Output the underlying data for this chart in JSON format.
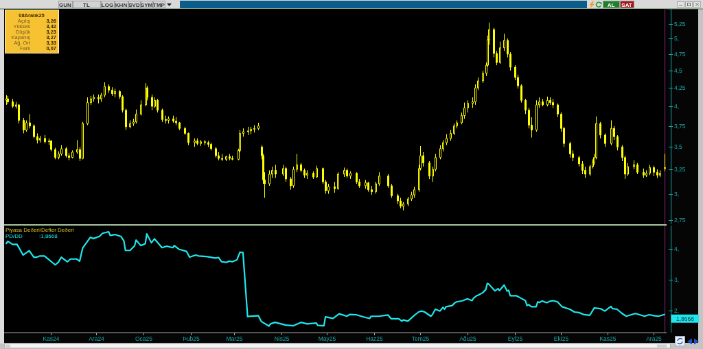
{
  "chart_data": [
    {
      "type": "other",
      "annotations": [
        "GUN",
        "TL",
        "LOG",
        "KHN",
        "SVD",
        "SYM",
        "TMP",
        "AL",
        "SAT"
      ]
    },
    {
      "type": "candlestick",
      "log": "y",
      "tick_labels": "y",
      "color": "#ffff00",
      "xlim": [
        "2024-10-02",
        "2025-12-09"
      ],
      "ylim": [
        2.72,
        5.5
      ],
      "yticks": [
        {
          "value": 2.75,
          "label": "2,75"
        },
        {
          "value": 3,
          "label": "3,"
        },
        {
          "value": 3.25,
          "label": "3,25"
        },
        {
          "value": 3.5,
          "label": "3,5"
        },
        {
          "value": 3.75,
          "label": "3,75"
        },
        {
          "value": 4,
          "label": "4,"
        },
        {
          "value": 4.25,
          "label": "4,25"
        },
        {
          "value": 4.5,
          "label": "4,5"
        },
        {
          "value": 4.75,
          "label": "4,75"
        },
        {
          "value": 5,
          "label": "5,"
        },
        {
          "value": 5.25,
          "label": "5,25"
        }
      ],
      "x": [
        "2024-10-03",
        "2024-10-04",
        "2024-10-07",
        "2024-10-09",
        "2024-10-11",
        "2024-10-14",
        "2024-10-16",
        "2024-10-18",
        "2024-10-21",
        "2024-10-23",
        "2024-10-25",
        "2024-10-28",
        "2024-10-31",
        "2024-11-01",
        "2024-11-04",
        "2024-11-06",
        "2024-11-08",
        "2024-11-11",
        "2024-11-13",
        "2024-11-15",
        "2024-11-18",
        "2024-11-20",
        "2024-11-22",
        "2024-11-25",
        "2024-11-27",
        "2024-11-29",
        "2024-12-02",
        "2024-12-04",
        "2024-12-06",
        "2024-12-09",
        "2024-12-11",
        "2024-12-13",
        "2024-12-16",
        "2024-12-18",
        "2024-12-20",
        "2024-12-23",
        "2024-12-25",
        "2024-12-27",
        "2024-12-30",
        "2025-01-02",
        "2025-01-03",
        "2025-01-06",
        "2025-01-08",
        "2025-01-10",
        "2025-01-13",
        "2025-01-15",
        "2025-01-17",
        "2025-01-20",
        "2025-01-22",
        "2025-01-24",
        "2025-01-28",
        "2025-01-30",
        "2025-02-03",
        "2025-02-05",
        "2025-02-07",
        "2025-02-10",
        "2025-02-12",
        "2025-02-14",
        "2025-02-17",
        "2025-02-19",
        "2025-02-21",
        "2025-02-24",
        "2025-02-26",
        "2025-02-28",
        "2025-03-04",
        "2025-03-05",
        "2025-03-07",
        "2025-03-10",
        "2025-03-12",
        "2025-03-14",
        "2025-03-17",
        "2025-03-19",
        "2025-03-20",
        "2025-03-21",
        "2025-03-24",
        "2025-03-26",
        "2025-03-28",
        "2025-04-02",
        "2025-04-04",
        "2025-04-07",
        "2025-04-09",
        "2025-04-11",
        "2025-04-14",
        "2025-04-16",
        "2025-04-18",
        "2025-04-22",
        "2025-04-24",
        "2025-04-28",
        "2025-04-30",
        "2025-05-02",
        "2025-05-06",
        "2025-05-08",
        "2025-05-12",
        "2025-05-14",
        "2025-05-16",
        "2025-05-20",
        "2025-05-22",
        "2025-05-26",
        "2025-05-28",
        "2025-05-30",
        "2025-06-02",
        "2025-06-04",
        "2025-06-10",
        "2025-06-12",
        "2025-06-16",
        "2025-06-18",
        "2025-06-20",
        "2025-06-23",
        "2025-06-25",
        "2025-06-27",
        "2025-06-30",
        "2025-07-01",
        "2025-07-03",
        "2025-07-07",
        "2025-07-09",
        "2025-07-11",
        "2025-07-14",
        "2025-07-16",
        "2025-07-18",
        "2025-07-21",
        "2025-07-23",
        "2025-07-25",
        "2025-07-28",
        "2025-07-30",
        "2025-08-01",
        "2025-08-04",
        "2025-08-06",
        "2025-08-08",
        "2025-08-11",
        "2025-08-13",
        "2025-08-14",
        "2025-08-15",
        "2025-08-18",
        "2025-08-20",
        "2025-08-22",
        "2025-08-25",
        "2025-08-27",
        "2025-08-29",
        "2025-09-01",
        "2025-09-03",
        "2025-09-05",
        "2025-09-08",
        "2025-09-10",
        "2025-09-12",
        "2025-09-15",
        "2025-09-17",
        "2025-09-19",
        "2025-09-22",
        "2025-09-24",
        "2025-09-26",
        "2025-09-29",
        "2025-10-01",
        "2025-10-03",
        "2025-10-07",
        "2025-10-09",
        "2025-10-13",
        "2025-10-15",
        "2025-10-17",
        "2025-10-20",
        "2025-10-22",
        "2025-10-23",
        "2025-10-24",
        "2025-10-27",
        "2025-10-30",
        "2025-11-03",
        "2025-11-05",
        "2025-11-07",
        "2025-11-10",
        "2025-11-12",
        "2025-11-14",
        "2025-11-18",
        "2025-11-20",
        "2025-11-24",
        "2025-11-26",
        "2025-11-28",
        "2025-12-01",
        "2025-12-03",
        "2025-12-05",
        "2025-12-08"
      ],
      "ohlc": [
        [
          4.08,
          4.15,
          4.02,
          4.1
        ],
        [
          4.1,
          4.14,
          4.03,
          4.06
        ],
        [
          4.06,
          4.1,
          3.98,
          4.0
        ],
        [
          4.0,
          4.06,
          3.97,
          4.02
        ],
        [
          4.02,
          4.03,
          3.78,
          3.82
        ],
        [
          3.82,
          3.85,
          3.66,
          3.7
        ],
        [
          3.7,
          3.82,
          3.68,
          3.79
        ],
        [
          3.79,
          3.9,
          3.72,
          3.75
        ],
        [
          3.75,
          3.77,
          3.6,
          3.62
        ],
        [
          3.62,
          3.66,
          3.54,
          3.58
        ],
        [
          3.58,
          3.63,
          3.55,
          3.6
        ],
        [
          3.6,
          3.64,
          3.54,
          3.56
        ],
        [
          3.56,
          3.6,
          3.52,
          3.57
        ],
        [
          3.57,
          3.58,
          3.45,
          3.47
        ],
        [
          3.47,
          3.49,
          3.36,
          3.38
        ],
        [
          3.38,
          3.45,
          3.36,
          3.42
        ],
        [
          3.42,
          3.52,
          3.4,
          3.48
        ],
        [
          3.48,
          3.5,
          3.38,
          3.4
        ],
        [
          3.4,
          3.43,
          3.35,
          3.38
        ],
        [
          3.38,
          3.46,
          3.37,
          3.44
        ],
        [
          3.44,
          3.58,
          3.42,
          3.47
        ],
        [
          3.47,
          3.5,
          3.34,
          3.37
        ],
        [
          3.37,
          3.8,
          3.36,
          3.78
        ],
        [
          3.78,
          4.12,
          3.76,
          4.05
        ],
        [
          4.05,
          4.14,
          4.02,
          4.1
        ],
        [
          4.1,
          4.16,
          4.06,
          4.12
        ],
        [
          4.12,
          4.16,
          4.04,
          4.1
        ],
        [
          4.1,
          4.18,
          4.06,
          4.15
        ],
        [
          4.15,
          4.33,
          4.12,
          4.27
        ],
        [
          4.27,
          4.3,
          4.18,
          4.22
        ],
        [
          4.22,
          4.26,
          4.14,
          4.17
        ],
        [
          4.17,
          4.24,
          4.12,
          4.2
        ],
        [
          4.2,
          4.22,
          4.1,
          4.13
        ],
        [
          4.13,
          4.15,
          3.92,
          3.95
        ],
        [
          3.95,
          3.97,
          3.7,
          3.74
        ],
        [
          3.74,
          3.82,
          3.72,
          3.78
        ],
        [
          3.78,
          3.84,
          3.75,
          3.8
        ],
        [
          3.8,
          3.96,
          3.78,
          3.9
        ],
        [
          3.9,
          4.08,
          3.88,
          4.02
        ],
        [
          4.02,
          4.32,
          4.0,
          4.25
        ],
        [
          4.25,
          4.28,
          4.08,
          4.12
        ],
        [
          4.12,
          4.16,
          3.95,
          4.0
        ],
        [
          4.0,
          4.12,
          3.98,
          4.08
        ],
        [
          4.08,
          4.1,
          3.92,
          3.95
        ],
        [
          3.95,
          3.97,
          3.8,
          3.83
        ],
        [
          3.83,
          3.88,
          3.78,
          3.82
        ],
        [
          3.82,
          3.87,
          3.78,
          3.84
        ],
        [
          3.84,
          3.88,
          3.79,
          3.81
        ],
        [
          3.81,
          3.86,
          3.76,
          3.79
        ],
        [
          3.79,
          3.8,
          3.7,
          3.72
        ],
        [
          3.72,
          3.74,
          3.64,
          3.66
        ],
        [
          3.66,
          3.67,
          3.52,
          3.55
        ],
        [
          3.55,
          3.6,
          3.5,
          3.57
        ],
        [
          3.57,
          3.6,
          3.52,
          3.54
        ],
        [
          3.54,
          3.58,
          3.51,
          3.56
        ],
        [
          3.56,
          3.58,
          3.52,
          3.55
        ],
        [
          3.55,
          3.57,
          3.5,
          3.53
        ],
        [
          3.53,
          3.55,
          3.46,
          3.48
        ],
        [
          3.48,
          3.5,
          3.38,
          3.4
        ],
        [
          3.4,
          3.44,
          3.35,
          3.37
        ],
        [
          3.37,
          3.42,
          3.34,
          3.36
        ],
        [
          3.36,
          3.4,
          3.34,
          3.39
        ],
        [
          3.39,
          3.42,
          3.35,
          3.37
        ],
        [
          3.37,
          3.4,
          3.35,
          3.36
        ],
        [
          3.36,
          3.48,
          3.35,
          3.46
        ],
        [
          3.46,
          3.7,
          3.44,
          3.66
        ],
        [
          3.66,
          3.72,
          3.62,
          3.68
        ],
        [
          3.68,
          3.74,
          3.64,
          3.69
        ],
        [
          3.69,
          3.74,
          3.65,
          3.71
        ],
        [
          3.71,
          3.76,
          3.67,
          3.72
        ],
        [
          3.72,
          3.79,
          3.7,
          3.75
        ],
        [
          3.5,
          3.52,
          3.36,
          3.4
        ],
        [
          3.4,
          3.42,
          3.1,
          3.14
        ],
        [
          3.14,
          3.22,
          2.96,
          3.1
        ],
        [
          3.1,
          3.24,
          3.08,
          3.2
        ],
        [
          3.2,
          3.28,
          3.16,
          3.24
        ],
        [
          3.24,
          3.3,
          3.16,
          3.2
        ],
        [
          3.2,
          3.3,
          3.18,
          3.26
        ],
        [
          3.26,
          3.28,
          3.12,
          3.15
        ],
        [
          3.15,
          3.17,
          3.04,
          3.08
        ],
        [
          3.08,
          3.28,
          3.06,
          3.25
        ],
        [
          3.25,
          3.42,
          3.22,
          3.3
        ],
        [
          3.3,
          3.32,
          3.22,
          3.24
        ],
        [
          3.24,
          3.26,
          3.16,
          3.19
        ],
        [
          3.19,
          3.24,
          3.15,
          3.21
        ],
        [
          3.21,
          3.23,
          3.15,
          3.17
        ],
        [
          3.17,
          3.29,
          3.16,
          3.26
        ],
        [
          3.26,
          3.27,
          3.1,
          3.12
        ],
        [
          3.12,
          3.14,
          3.0,
          3.03
        ],
        [
          3.03,
          3.1,
          3.0,
          3.07
        ],
        [
          3.07,
          3.12,
          3.01,
          3.05
        ],
        [
          3.05,
          3.22,
          3.04,
          3.2
        ],
        [
          3.2,
          3.27,
          3.17,
          3.24
        ],
        [
          3.24,
          3.26,
          3.16,
          3.18
        ],
        [
          3.18,
          3.23,
          3.15,
          3.21
        ],
        [
          3.21,
          3.22,
          3.1,
          3.12
        ],
        [
          3.12,
          3.15,
          3.06,
          3.08
        ],
        [
          3.08,
          3.14,
          3.05,
          3.11
        ],
        [
          3.11,
          3.12,
          3.02,
          3.04
        ],
        [
          3.04,
          3.08,
          2.99,
          3.02
        ],
        [
          3.02,
          3.12,
          3.0,
          3.1
        ],
        [
          3.1,
          3.22,
          3.08,
          3.18
        ],
        [
          3.18,
          3.2,
          3.06,
          3.08
        ],
        [
          3.08,
          3.1,
          2.96,
          2.98
        ],
        [
          2.98,
          3.0,
          2.9,
          2.93
        ],
        [
          2.93,
          2.96,
          2.86,
          2.88
        ],
        [
          2.88,
          2.92,
          2.84,
          2.9
        ],
        [
          2.9,
          2.97,
          2.88,
          2.95
        ],
        [
          2.95,
          3.02,
          2.93,
          2.99
        ],
        [
          2.99,
          3.07,
          2.96,
          3.04
        ],
        [
          3.04,
          3.3,
          3.02,
          3.26
        ],
        [
          3.26,
          3.51,
          3.24,
          3.4
        ],
        [
          3.4,
          3.44,
          3.28,
          3.32
        ],
        [
          3.32,
          3.34,
          3.15,
          3.18
        ],
        [
          3.18,
          3.28,
          3.12,
          3.25
        ],
        [
          3.25,
          3.42,
          3.23,
          3.38
        ],
        [
          3.38,
          3.52,
          3.36,
          3.48
        ],
        [
          3.48,
          3.58,
          3.45,
          3.55
        ],
        [
          3.55,
          3.65,
          3.52,
          3.6
        ],
        [
          3.6,
          3.7,
          3.57,
          3.66
        ],
        [
          3.66,
          3.78,
          3.64,
          3.75
        ],
        [
          3.75,
          3.82,
          3.72,
          3.79
        ],
        [
          3.79,
          3.92,
          3.77,
          3.88
        ],
        [
          3.88,
          4.05,
          3.84,
          3.98
        ],
        [
          3.98,
          4.08,
          3.92,
          4.04
        ],
        [
          4.04,
          4.12,
          3.98,
          4.06
        ],
        [
          4.06,
          4.3,
          4.02,
          4.25
        ],
        [
          4.25,
          4.4,
          4.22,
          4.35
        ],
        [
          4.35,
          4.5,
          4.32,
          4.46
        ],
        [
          4.46,
          4.62,
          4.42,
          4.58
        ],
        [
          4.58,
          5.05,
          4.56,
          4.98
        ],
        [
          4.98,
          5.27,
          4.9,
          5.15
        ],
        [
          5.15,
          5.18,
          4.7,
          4.76
        ],
        [
          4.76,
          4.8,
          4.58,
          4.62
        ],
        [
          4.62,
          4.95,
          4.6,
          4.85
        ],
        [
          4.85,
          5.08,
          4.8,
          4.97
        ],
        [
          4.97,
          5.0,
          4.7,
          4.75
        ],
        [
          4.75,
          4.78,
          4.5,
          4.55
        ],
        [
          4.55,
          4.58,
          4.36,
          4.4
        ],
        [
          4.4,
          4.44,
          4.24,
          4.28
        ],
        [
          4.28,
          4.3,
          4.05,
          4.08
        ],
        [
          4.08,
          4.1,
          3.9,
          3.95
        ],
        [
          3.95,
          3.98,
          3.72,
          3.76
        ],
        [
          3.76,
          3.86,
          3.61,
          3.7
        ],
        [
          3.7,
          4.08,
          3.68,
          4.02
        ],
        [
          4.02,
          4.12,
          3.98,
          4.06
        ],
        [
          4.06,
          4.1,
          4.0,
          4.02
        ],
        [
          4.02,
          4.13,
          4.0,
          4.08
        ],
        [
          4.08,
          4.12,
          4.02,
          4.05
        ],
        [
          4.05,
          4.1,
          3.98,
          4.02
        ],
        [
          4.02,
          4.04,
          3.86,
          3.9
        ],
        [
          3.9,
          3.92,
          3.68,
          3.72
        ],
        [
          3.72,
          3.74,
          3.5,
          3.54
        ],
        [
          3.54,
          3.56,
          3.38,
          3.42
        ],
        [
          3.42,
          3.46,
          3.34,
          3.38
        ],
        [
          3.38,
          3.4,
          3.28,
          3.31
        ],
        [
          3.31,
          3.34,
          3.2,
          3.24
        ],
        [
          3.24,
          3.28,
          3.16,
          3.2
        ],
        [
          3.2,
          3.3,
          3.18,
          3.28
        ],
        [
          3.28,
          3.36,
          3.26,
          3.33
        ],
        [
          3.33,
          3.42,
          3.3,
          3.38
        ],
        [
          3.38,
          3.87,
          3.36,
          3.78
        ],
        [
          3.78,
          3.8,
          3.6,
          3.64
        ],
        [
          3.64,
          3.66,
          3.5,
          3.54
        ],
        [
          3.54,
          3.82,
          3.52,
          3.72
        ],
        [
          3.72,
          3.75,
          3.58,
          3.62
        ],
        [
          3.62,
          3.64,
          3.46,
          3.5
        ],
        [
          3.5,
          3.52,
          3.34,
          3.38
        ],
        [
          3.38,
          3.4,
          3.15,
          3.2
        ],
        [
          3.2,
          3.32,
          3.18,
          3.28
        ],
        [
          3.28,
          3.35,
          3.25,
          3.3
        ],
        [
          3.3,
          3.32,
          3.2,
          3.22
        ],
        [
          3.22,
          3.26,
          3.16,
          3.19
        ],
        [
          3.19,
          3.24,
          3.17,
          3.21
        ],
        [
          3.21,
          3.3,
          3.19,
          3.27
        ],
        [
          3.27,
          3.29,
          3.18,
          3.22
        ],
        [
          3.22,
          3.25,
          3.16,
          3.19
        ],
        [
          3.19,
          3.24,
          3.17,
          3.21
        ],
        [
          3.26,
          3.42,
          3.23,
          3.27
        ]
      ],
      "ref_lines": [
        {
          "axis": "x",
          "value": "2025-12-08",
          "color": "#5a1e5a"
        }
      ],
      "annotations": [
        "08Aralık25",
        "Açılış",
        "3,26",
        "Yüksek",
        "3,42",
        "Düşük",
        "3,23",
        "Kapanış",
        "3,27",
        "Ağ. Ort",
        "3,33",
        "Fark",
        "0,07"
      ]
    },
    {
      "type": "line",
      "title": "Piyasa Deðeri/Defter Deðeri",
      "legend": "top left",
      "xlim": [
        "2024-10-02",
        "2025-12-09"
      ],
      "ylim": [
        1.3,
        4.75
      ],
      "xticks": [
        {
          "value": "2024-11-01",
          "label": "Kas24"
        },
        {
          "value": "2024-12-01",
          "label": "Ara24"
        },
        {
          "value": "2025-01-01",
          "label": "Oca25"
        },
        {
          "value": "2025-02-01",
          "label": "Þub25"
        },
        {
          "value": "2025-03-01",
          "label": "Mar25"
        },
        {
          "value": "2025-04-01",
          "label": "Nis25"
        },
        {
          "value": "2025-05-01",
          "label": "May25"
        },
        {
          "value": "2025-06-01",
          "label": "Haz25"
        },
        {
          "value": "2025-07-01",
          "label": "Tem25"
        },
        {
          "value": "2025-08-01",
          "label": "Aðu25"
        },
        {
          "value": "2025-09-01",
          "label": "Eyl25"
        },
        {
          "value": "2025-10-01",
          "label": "Eki25"
        },
        {
          "value": "2025-11-01",
          "label": "Kas25"
        },
        {
          "value": "2025-12-01",
          "label": "Ara25"
        }
      ],
      "yticks": [
        {
          "value": 2,
          "label": "2,"
        },
        {
          "value": 3,
          "label": "3,"
        },
        {
          "value": 4,
          "label": "4,"
        }
      ],
      "x": [
        "2024-10-03",
        "2024-10-04",
        "2024-10-07",
        "2024-10-10",
        "2024-10-14",
        "2024-10-18",
        "2024-10-21",
        "2024-10-23",
        "2024-10-25",
        "2024-10-28",
        "2024-11-04",
        "2024-11-06",
        "2024-11-08",
        "2024-11-12",
        "2024-11-14",
        "2024-11-18",
        "2024-11-20",
        "2024-11-22",
        "2024-11-25",
        "2024-11-27",
        "2024-11-29",
        "2024-12-03",
        "2024-12-05",
        "2024-12-09",
        "2024-12-10",
        "2024-12-13",
        "2024-12-17",
        "2024-12-19",
        "2024-12-20",
        "2024-12-23",
        "2024-12-26",
        "2024-12-27",
        "2024-12-30",
        "2025-01-02",
        "2025-01-03",
        "2025-01-06",
        "2025-01-08",
        "2025-01-13",
        "2025-01-16",
        "2025-01-20",
        "2025-01-21",
        "2025-01-24",
        "2025-01-29",
        "2025-01-31",
        "2025-02-04",
        "2025-02-06",
        "2025-02-11",
        "2025-02-17",
        "2025-02-19",
        "2025-02-21",
        "2025-02-24",
        "2025-02-26",
        "2025-02-28",
        "2025-03-03",
        "2025-03-05",
        "2025-03-07",
        "2025-03-10",
        "2025-03-17",
        "2025-03-19",
        "2025-03-24",
        "2025-03-25",
        "2025-03-28",
        "2025-04-04",
        "2025-04-09",
        "2025-04-14",
        "2025-04-18",
        "2025-04-24",
        "2025-04-25",
        "2025-04-29",
        "2025-04-30",
        "2025-05-05",
        "2025-05-09",
        "2025-05-14",
        "2025-05-16",
        "2025-05-20",
        "2025-05-27",
        "2025-05-29",
        "2025-05-30",
        "2025-06-04",
        "2025-06-10",
        "2025-06-12",
        "2025-06-17",
        "2025-06-19",
        "2025-06-20",
        "2025-06-23",
        "2025-06-25",
        "2025-06-27",
        "2025-06-30",
        "2025-07-02",
        "2025-07-04",
        "2025-07-08",
        "2025-07-09",
        "2025-07-11",
        "2025-07-14",
        "2025-07-16",
        "2025-07-17",
        "2025-07-18",
        "2025-07-22",
        "2025-07-24",
        "2025-07-25",
        "2025-07-29",
        "2025-08-01",
        "2025-08-04",
        "2025-08-05",
        "2025-08-07",
        "2025-08-08",
        "2025-08-11",
        "2025-08-13",
        "2025-08-14",
        "2025-08-15",
        "2025-08-19",
        "2025-08-21",
        "2025-08-22",
        "2025-08-25",
        "2025-08-27",
        "2025-08-28",
        "2025-08-29",
        "2025-09-02",
        "2025-09-05",
        "2025-09-08",
        "2025-09-09",
        "2025-09-10",
        "2025-09-12",
        "2025-09-15",
        "2025-09-16",
        "2025-09-17",
        "2025-09-19",
        "2025-09-22",
        "2025-09-24",
        "2025-09-26",
        "2025-09-29",
        "2025-10-02",
        "2025-10-07",
        "2025-10-10",
        "2025-10-13",
        "2025-10-16",
        "2025-10-20",
        "2025-10-21",
        "2025-10-23",
        "2025-10-27",
        "2025-10-30",
        "2025-11-03",
        "2025-11-04",
        "2025-11-07",
        "2025-11-10",
        "2025-11-13",
        "2025-11-17",
        "2025-11-19",
        "2025-11-21",
        "2025-11-25",
        "2025-11-28",
        "2025-12-01",
        "2025-12-04",
        "2025-12-08"
      ],
      "series": [
        {
          "name": "PD/DD",
          "color": "#1ee8ee",
          "values": [
            4.19,
            4.26,
            4.16,
            4.16,
            3.81,
            3.95,
            3.74,
            3.74,
            3.78,
            3.78,
            3.49,
            3.57,
            3.74,
            3.59,
            3.68,
            3.68,
            3.61,
            4.04,
            4.25,
            4.39,
            4.35,
            4.42,
            4.52,
            4.57,
            4.45,
            4.48,
            4.42,
            4.27,
            3.96,
            3.96,
            4.11,
            4.3,
            4.12,
            4.18,
            4.5,
            4.21,
            4.34,
            4.05,
            4.1,
            4.05,
            4.12,
            4.0,
            3.93,
            3.74,
            3.81,
            3.78,
            3.76,
            3.71,
            3.73,
            3.59,
            3.57,
            3.61,
            3.59,
            3.65,
            3.9,
            3.89,
            1.8,
            1.83,
            1.64,
            1.49,
            1.56,
            1.61,
            1.52,
            1.5,
            1.61,
            1.56,
            1.59,
            1.51,
            1.5,
            1.79,
            1.74,
            1.89,
            1.81,
            1.87,
            1.86,
            1.76,
            1.74,
            1.81,
            1.81,
            1.85,
            1.73,
            1.73,
            1.65,
            1.69,
            1.65,
            1.74,
            1.83,
            1.95,
            1.98,
            1.95,
            1.81,
            1.86,
            2.04,
            1.98,
            2.1,
            2.04,
            2.12,
            2.16,
            2.26,
            2.28,
            2.32,
            2.38,
            2.32,
            2.4,
            2.48,
            2.5,
            2.58,
            2.68,
            2.88,
            2.86,
            2.64,
            2.71,
            2.65,
            2.83,
            2.63,
            2.66,
            2.48,
            2.48,
            2.4,
            2.32,
            2.16,
            2.19,
            2.12,
            2.12,
            2.28,
            2.26,
            2.31,
            2.25,
            2.3,
            2.32,
            2.28,
            2.12,
            2.04,
            1.95,
            1.93,
            1.87,
            1.84,
            1.91,
            2.08,
            2.06,
            1.98,
            2.13,
            2.06,
            2.04,
            1.91,
            1.81,
            1.87,
            1.9,
            1.87,
            1.81,
            1.86,
            1.83,
            1.81,
            1.8668
          ]
        }
      ],
      "ref_lines": [
        {
          "axis": "x",
          "value": "2025-12-08",
          "color": "#5a1e5a"
        }
      ],
      "annotations": [
        ":1,8668",
        "1,8668"
      ]
    }
  ]
}
